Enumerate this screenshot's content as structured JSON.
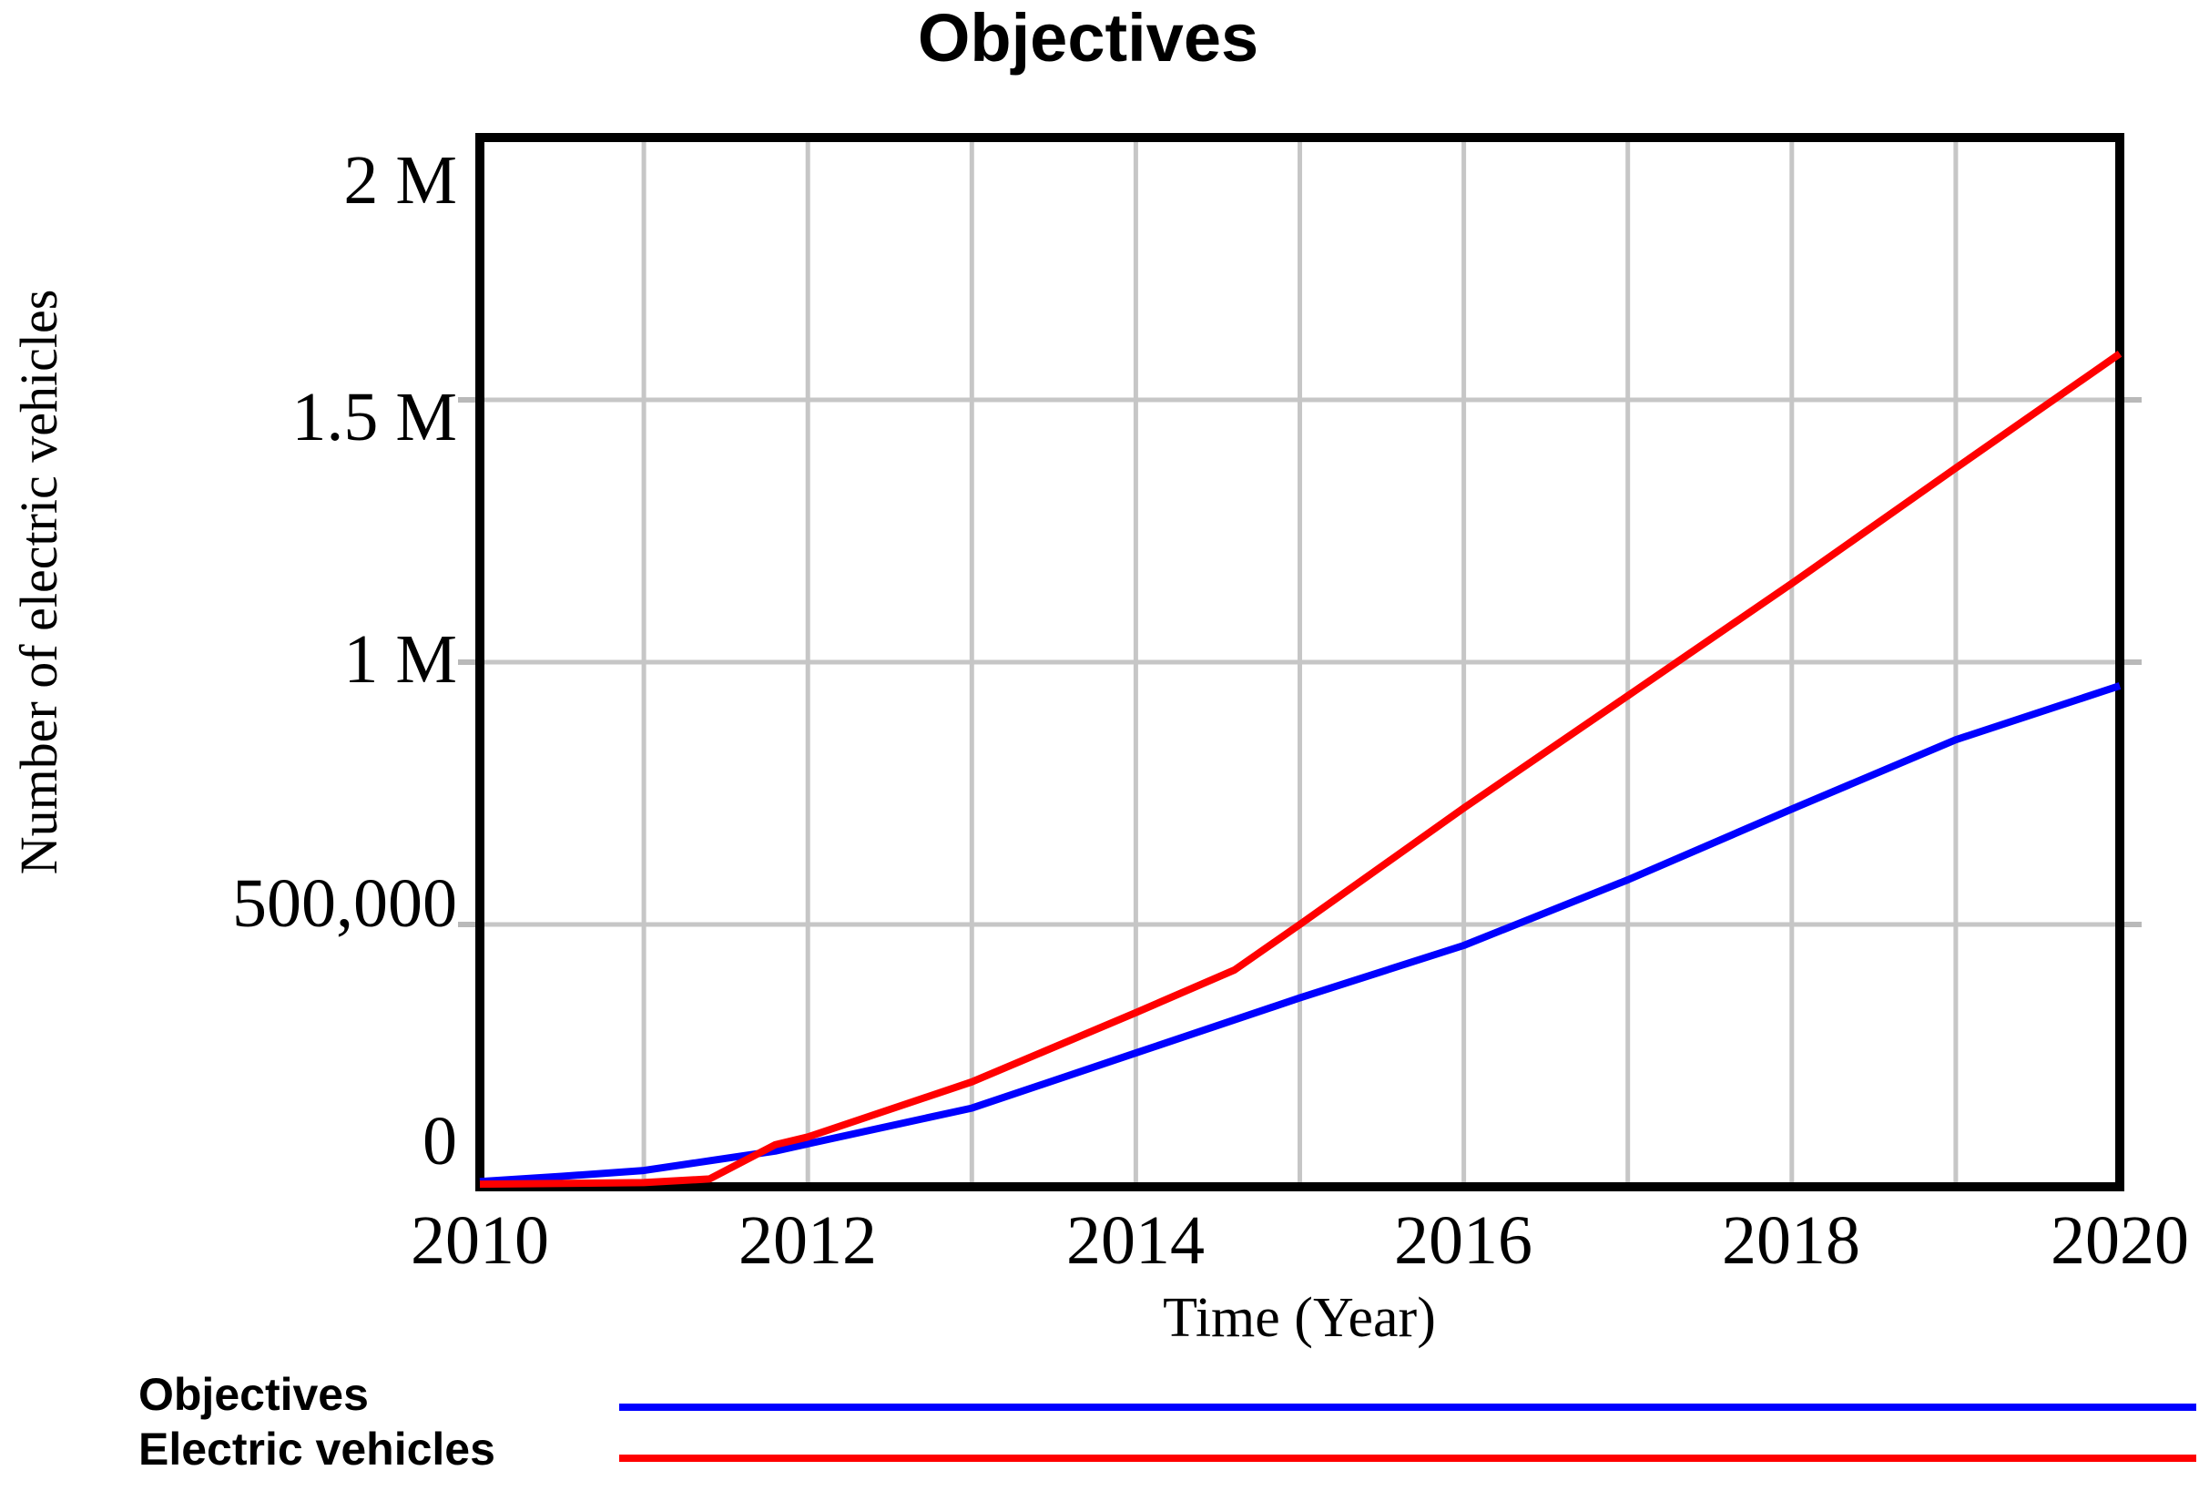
{
  "title": "Objectives",
  "y_axis": {
    "label": "Number of electric vehicles",
    "ticks": [
      "2 M",
      "1.5 M",
      "1 M",
      "500,000",
      "0"
    ]
  },
  "x_axis": {
    "label": "Time (Year)",
    "ticks": [
      "2010",
      "2012",
      "2014",
      "2016",
      "2018",
      "2020"
    ]
  },
  "legend": {
    "items": [
      {
        "label": "Objectives",
        "color": "#0000ff"
      },
      {
        "label": "Electric vehicles",
        "color": "#ff0000"
      }
    ]
  },
  "colors": {
    "objectives_line": "#0000ff",
    "electric_vehicles_line": "#ff0000",
    "gridline": "#c6c6c6",
    "tick_stub": "#b9b9b9",
    "border": "#000000"
  },
  "chart_data": {
    "type": "line",
    "title": "Objectives",
    "xlabel": "Time (Year)",
    "ylabel": "Number of electric vehicles",
    "xlim": [
      2010,
      2020
    ],
    "ylim": [
      0,
      2000000
    ],
    "x_ticks_labeled": [
      2010,
      2012,
      2014,
      2016,
      2018,
      2020
    ],
    "x_gridline_years": [
      2011,
      2012,
      2013,
      2014,
      2015,
      2016,
      2017,
      2018,
      2019
    ],
    "y_ticks": [
      0,
      500000,
      1000000,
      1500000,
      2000000
    ],
    "y_gridline_values": [
      500000,
      1000000,
      1500000
    ],
    "grid": true,
    "legend_position": "bottom-left",
    "series": [
      {
        "name": "Objectives",
        "color": "#0000ff",
        "points": [
          [
            2010,
            10000
          ],
          [
            2010.5,
            20000
          ],
          [
            2011,
            31000
          ],
          [
            2011.8,
            68000
          ],
          [
            2012,
            82000
          ],
          [
            2013,
            150000
          ],
          [
            2014,
            255000
          ],
          [
            2015,
            360000
          ],
          [
            2016,
            460000
          ],
          [
            2017,
            585000
          ],
          [
            2018,
            720000
          ],
          [
            2019,
            852000
          ],
          [
            2020,
            955000
          ]
        ]
      },
      {
        "name": "Electric vehicles",
        "color": "#ff0000",
        "points": [
          [
            2010,
            5000
          ],
          [
            2011,
            8000
          ],
          [
            2011.4,
            15000
          ],
          [
            2011.8,
            80000
          ],
          [
            2012,
            95000
          ],
          [
            2013,
            200000
          ],
          [
            2014,
            332000
          ],
          [
            2014.6,
            413000
          ],
          [
            2015,
            500000
          ],
          [
            2016,
            722000
          ],
          [
            2017,
            936000
          ],
          [
            2018,
            1150000
          ],
          [
            2019,
            1370000
          ],
          [
            2020,
            1588000
          ]
        ]
      }
    ]
  }
}
